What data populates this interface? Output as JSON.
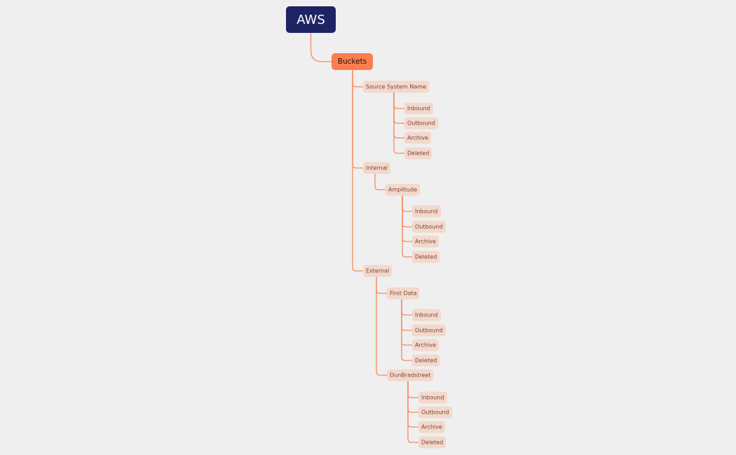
{
  "root": {
    "label": "AWS"
  },
  "main": {
    "label": "Buckets"
  },
  "source": {
    "label": "Source System Name",
    "children": [
      "Inbound",
      "Outbound",
      "Archive",
      "Deleted"
    ]
  },
  "internal": {
    "label": "Internal"
  },
  "amplitude": {
    "label": "Amplitude",
    "children": [
      "Inbound",
      "Outbound",
      "Archive",
      "Deleted"
    ]
  },
  "external": {
    "label": "External"
  },
  "firstdata": {
    "label": "First Data",
    "children": [
      "Inbound",
      "Outbound",
      "Archive",
      "Deleted"
    ]
  },
  "dnb": {
    "label": "DunBradstreet",
    "children": [
      "Inbound",
      "Outbound",
      "Archive",
      "Deleted"
    ]
  },
  "colors": {
    "root": "#1e2463",
    "main": "#fa7e4f",
    "node": "#f3d8cc",
    "link": "#f88a5e",
    "background": "#efefef"
  }
}
